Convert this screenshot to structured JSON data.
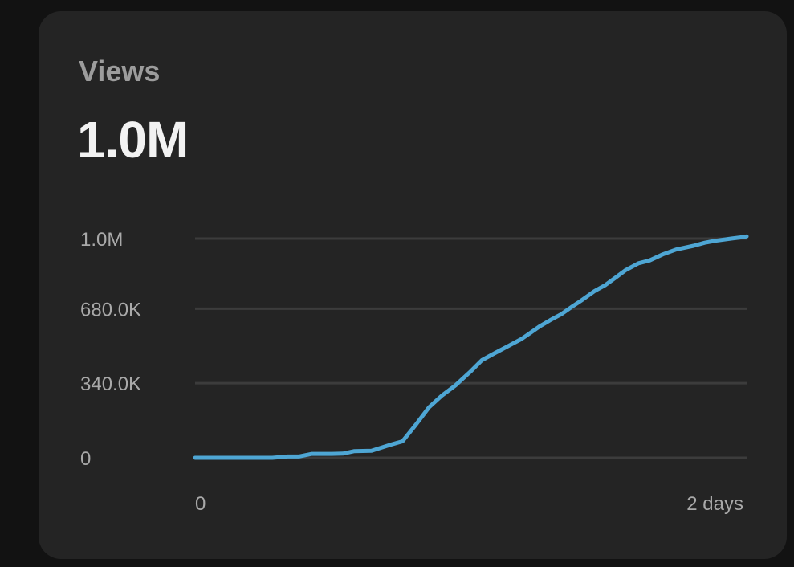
{
  "card": {
    "title": "Views",
    "value": "1.0M"
  },
  "colors": {
    "background": "#121212",
    "card": "#242424",
    "line": "#4ea6d4",
    "grid": "#3c3c3c"
  },
  "chart_data": {
    "type": "line",
    "title": "",
    "xlabel": "",
    "ylabel": "",
    "xlim": [
      0,
      2.5
    ],
    "ylim": [
      0,
      1000000
    ],
    "grid": true,
    "legend": "none",
    "y_ticks": [
      {
        "value": 0,
        "label": "0"
      },
      {
        "value": 340000,
        "label": "340.0K"
      },
      {
        "value": 680000,
        "label": "680.0K"
      },
      {
        "value": 1000000,
        "label": "1.0M"
      }
    ],
    "x_ticks": [
      {
        "value": 0,
        "label": "0"
      },
      {
        "value": 2,
        "label": "2 days"
      }
    ],
    "series": [
      {
        "color": "#4ea6d4",
        "x": [
          0,
          0.35,
          0.42,
          0.47,
          0.53,
          0.62,
          0.67,
          0.72,
          0.8,
          0.88,
          0.94,
          1.0,
          1.06,
          1.12,
          1.18,
          1.25,
          1.3,
          1.36,
          1.42,
          1.48,
          1.52,
          1.56,
          1.61,
          1.66,
          1.71,
          1.75,
          1.81,
          1.86,
          1.91,
          1.95,
          2.01,
          2.06,
          2.12,
          2.18,
          2.26,
          2.31,
          2.36,
          2.43,
          2.47,
          2.5
        ],
        "y": [
          0,
          0,
          6000,
          6000,
          18000,
          18000,
          19000,
          30000,
          32000,
          58000,
          75000,
          150000,
          230000,
          285000,
          330000,
          395000,
          445000,
          478000,
          510000,
          542000,
          570000,
          598000,
          628000,
          655000,
          690000,
          717000,
          760000,
          788000,
          825000,
          855000,
          887000,
          900000,
          928000,
          950000,
          967000,
          981000,
          990000,
          1000000,
          1005000,
          1010000
        ]
      }
    ]
  }
}
